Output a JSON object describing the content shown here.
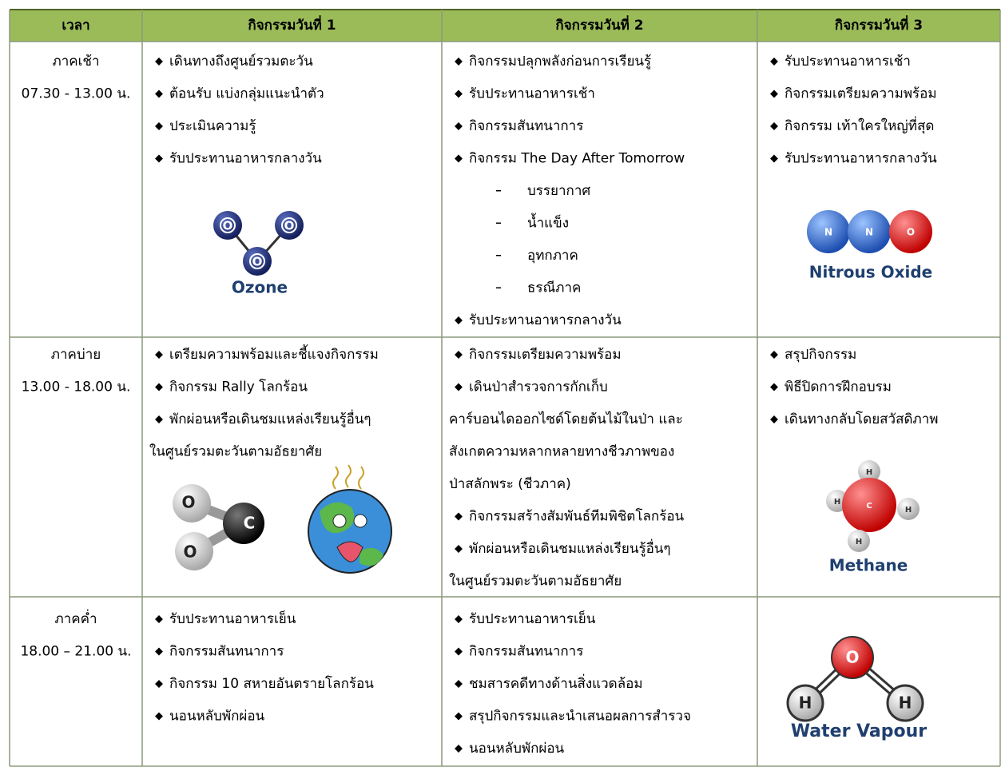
{
  "table": {
    "header": [
      "เวลา",
      "กิจกรรมวันที่ 1",
      "กิจกรรมวันที่ 2",
      "กิจกรรมวันที่ 3"
    ],
    "rows": [
      {
        "time": {
          "period": "ภาคเช้า",
          "hours": "07.30 - 13.00 น."
        },
        "days": [
          {
            "items": [
              "เดินทางถึงศูนย์รวมตะวัน",
              "ต้อนรับ แบ่งกลุ่มแนะนำตัว",
              "ประเมินความรู้",
              "รับประทานอาหารกลางวัน"
            ],
            "molecule": {
              "name": "Ozone",
              "atoms": [
                "O",
                "O",
                "O"
              ]
            }
          },
          {
            "items": [
              "กิจกรรมปลุกพลังก่อนการเรียนรู้",
              "รับประทานอาหารเช้า",
              "กิจกรรมสันทนาการ",
              {
                "text": "กิจกรรม The Day After Tomorrow",
                "sub": [
                  "บรรยากาศ",
                  "น้ำแข็ง",
                  "อุทกภาค",
                  "ธรณีภาค"
                ]
              },
              "รับประทานอาหารกลางวัน"
            ]
          },
          {
            "items": [
              "รับประทานอาหารเช้า",
              "กิจกรรมเตรียมความพร้อม",
              "กิจกรรม เท้าใครใหญ่ที่สุด",
              "รับประทานอาหารกลางวัน"
            ],
            "molecule": {
              "name": "Nitrous Oxide",
              "atoms": [
                "N",
                "N",
                "O"
              ]
            }
          }
        ]
      },
      {
        "time": {
          "period": "ภาคบ่าย",
          "hours": "13.00 - 18.00 น."
        },
        "days": [
          {
            "items": [
              "เตรียมความพร้อมและชี้แจงกิจกรรม",
              "กิจกรรม Rally โลกร้อน",
              {
                "lines": [
                  "พักผ่อนหรือเดินชมแหล่งเรียนรู้อื่นๆ",
                  "ในศูนย์รวมตะวันตามอัธยาศัย"
                ]
              }
            ],
            "molecule": {
              "atoms": [
                "O",
                "C",
                "O"
              ]
            }
          },
          {
            "items": [
              "กิจกรรมเตรียมความพร้อม",
              {
                "lines": [
                  "เดินป่าสำรวจการกักเก็บ",
                  "คาร์บอนไดออกไซด์โดยต้นไม้ในป่า และ",
                  "สังเกตความหลากหลายทางชีวภาพของ",
                  "ป่าสลักพระ (ชีวภาค)"
                ]
              },
              "กิจกรรมสร้างสัมพันธ์ทีมพิชิตโลกร้อน",
              {
                "lines": [
                  "พักผ่อนหรือเดินชมแหล่งเรียนรู้อื่นๆ",
                  "ในศูนย์รวมตะวันตามอัธยาศัย"
                ]
              }
            ]
          },
          {
            "items": [
              "สรุปกิจกรรม",
              "พิธีปิดการฝึกอบรม",
              "เดินทางกลับโดยสวัสดิภาพ"
            ],
            "molecule": {
              "name": "Methane",
              "atoms": [
                "H",
                "H",
                "C",
                "H",
                "H"
              ]
            }
          }
        ]
      },
      {
        "time": {
          "period": "ภาคค่ำ",
          "hours": "18.00 – 21.00 น."
        },
        "days": [
          {
            "items": [
              "รับประทานอาหารเย็น",
              "กิจกรรมสันทนาการ",
              "กิจกรรม 10 สหายอันตรายโลกร้อน",
              "นอนหลับพักผ่อน"
            ]
          },
          {
            "items": [
              "รับประทานอาหารเย็น",
              "กิจกรรมสันทนาการ",
              "ชมสารคดีทางด้านสิ่งแวดล้อม",
              "สรุปกิจกรรมและนำเสนอผลการสำรวจ",
              "นอนหลับพักผ่อน"
            ]
          },
          {
            "items": [],
            "molecule": {
              "name": "Water Vapour",
              "atoms": [
                "O",
                "H",
                "H"
              ]
            }
          }
        ]
      }
    ]
  }
}
